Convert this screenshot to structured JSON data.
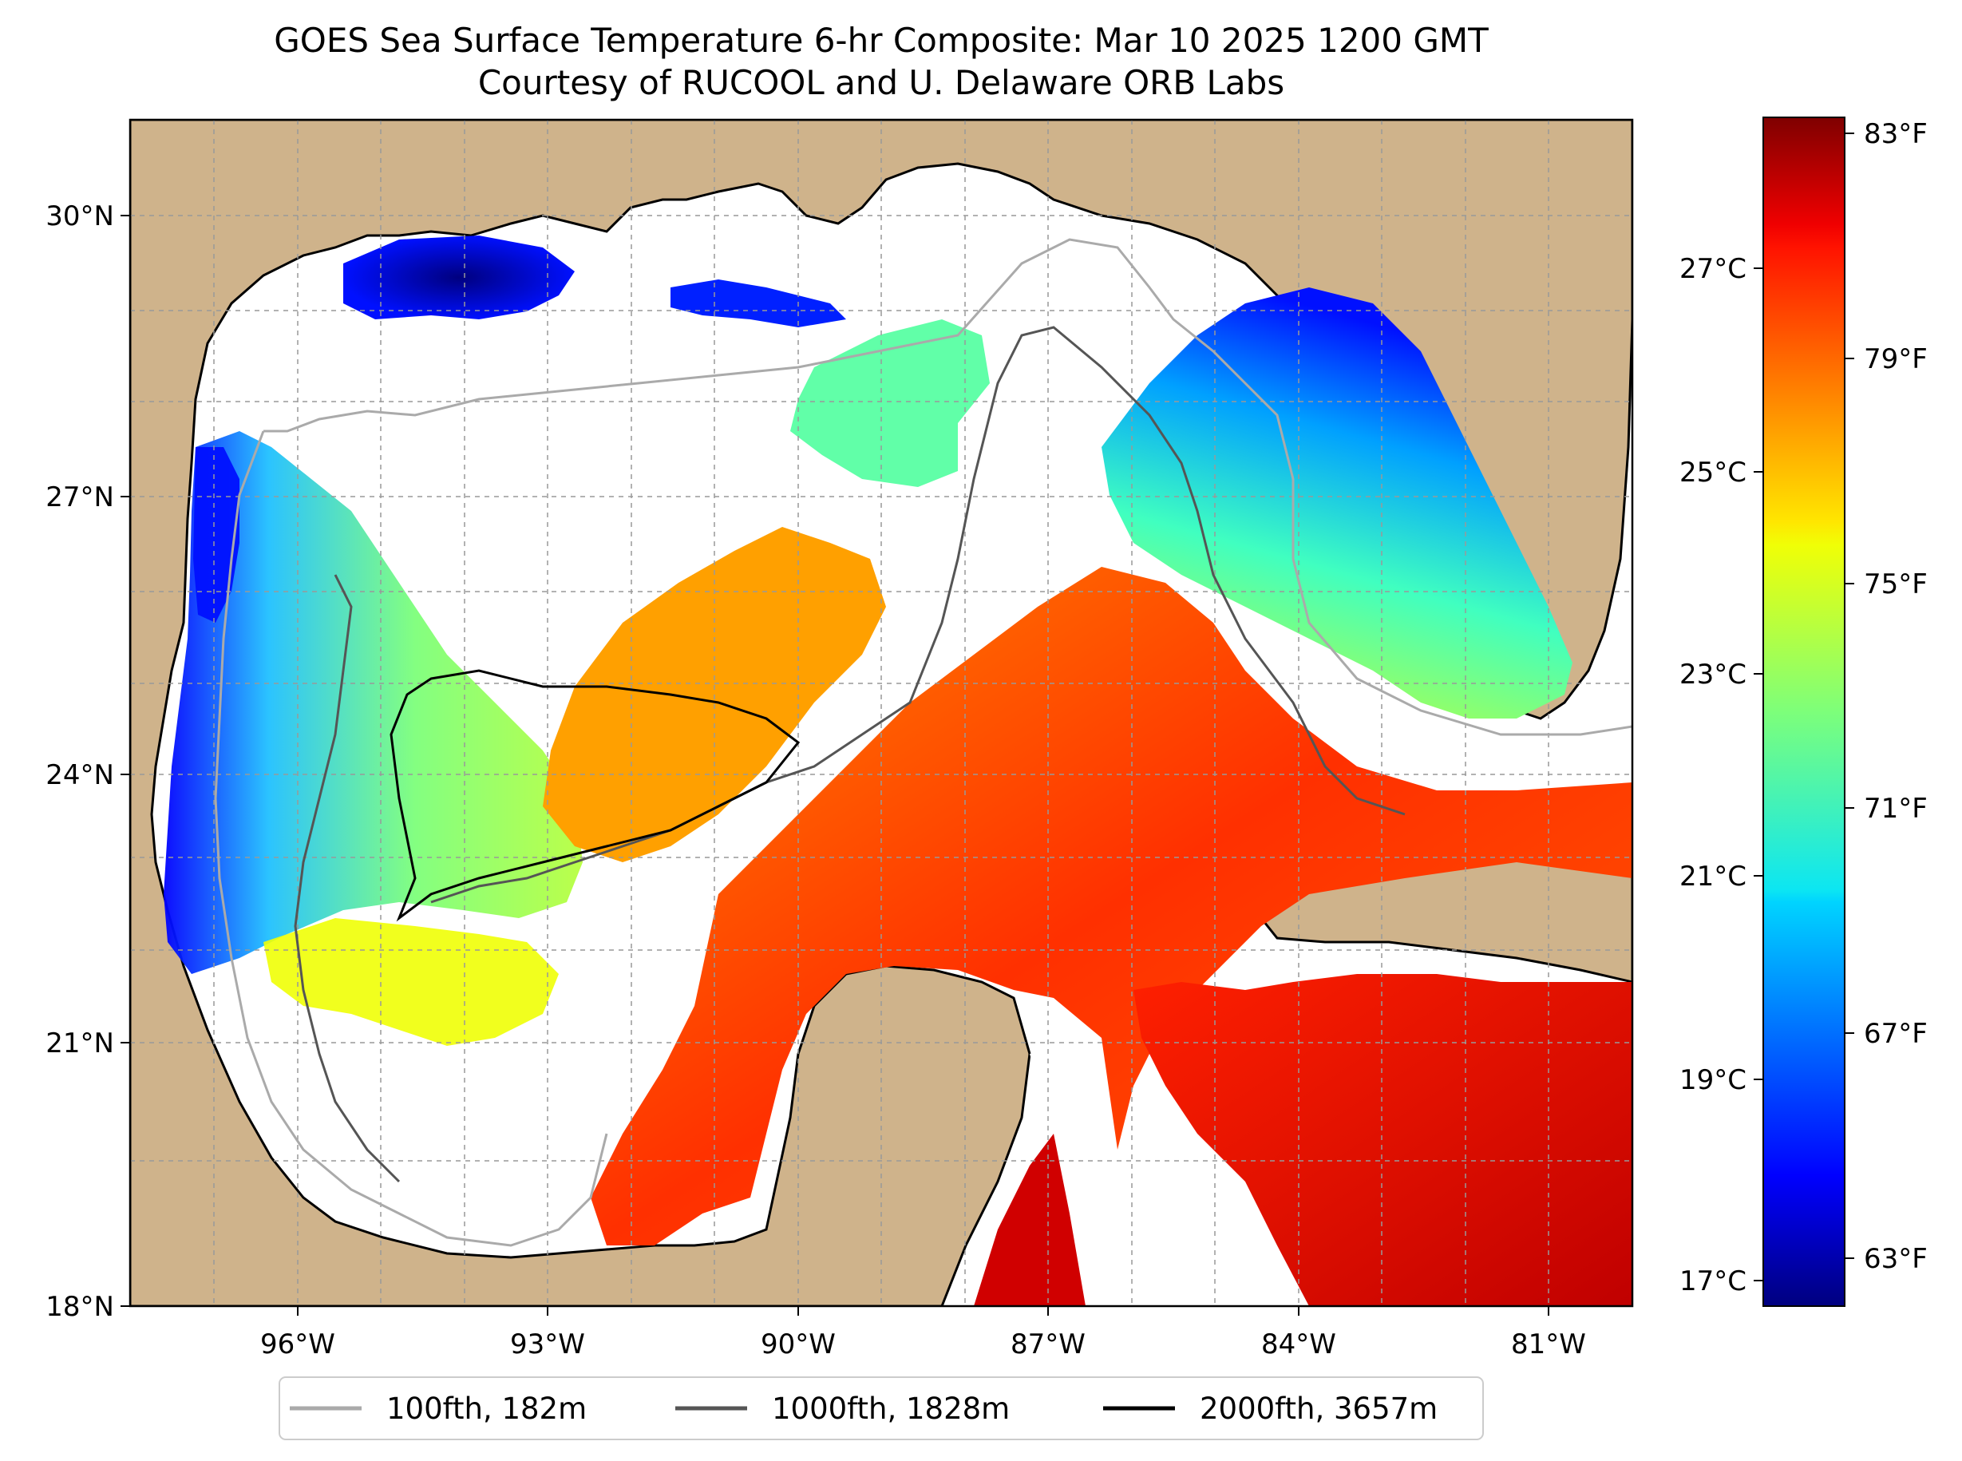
{
  "title": "GOES Sea Surface Temperature 6-hr Composite: Mar 10 2025 1200 GMT",
  "subtitle": "Courtesy of RUCOOL and U. Delaware ORB Labs",
  "map": {
    "extent_lon": [
      -98,
      -80
    ],
    "extent_lat": [
      18,
      31
    ],
    "lon_ticks": [
      {
        "value": -96,
        "label": "96°W"
      },
      {
        "value": -93,
        "label": "93°W"
      },
      {
        "value": -90,
        "label": "90°W"
      },
      {
        "value": -87,
        "label": "87°W"
      },
      {
        "value": -84,
        "label": "84°W"
      },
      {
        "value": -81,
        "label": "81°W"
      }
    ],
    "lat_ticks": [
      {
        "value": 18,
        "label": "18°N"
      },
      {
        "value": 21,
        "label": "21°N"
      },
      {
        "value": 24,
        "label": "24°N"
      },
      {
        "value": 27,
        "label": "27°N"
      },
      {
        "value": 30,
        "label": "30°N"
      }
    ],
    "gridlines": true,
    "land_color": "#cfb38b",
    "water_no_data_color": "#ffffff"
  },
  "colorbar": {
    "colormap": "jet",
    "range_c": [
      16.8,
      28.4
    ],
    "celsius_ticks": [
      {
        "value": 17,
        "label": "17°C"
      },
      {
        "value": 19,
        "label": "19°C"
      },
      {
        "value": 21,
        "label": "21°C"
      },
      {
        "value": 23,
        "label": "23°C"
      },
      {
        "value": 25,
        "label": "25°C"
      },
      {
        "value": 27,
        "label": "27°C"
      }
    ],
    "fahrenheit_ticks": [
      {
        "value": 63,
        "label": "63°F"
      },
      {
        "value": 67,
        "label": "67°F"
      },
      {
        "value": 71,
        "label": "71°F"
      },
      {
        "value": 75,
        "label": "75°F"
      },
      {
        "value": 79,
        "label": "79°F"
      },
      {
        "value": 83,
        "label": "83°F"
      }
    ]
  },
  "legend": {
    "placement": "bottom-center",
    "items": [
      {
        "label": "100fth, 182m",
        "color": "#aaaaaa"
      },
      {
        "label": "1000fth, 1828m",
        "color": "#555555"
      },
      {
        "label": "2000fth, 3657m",
        "color": "#000000"
      }
    ]
  }
}
